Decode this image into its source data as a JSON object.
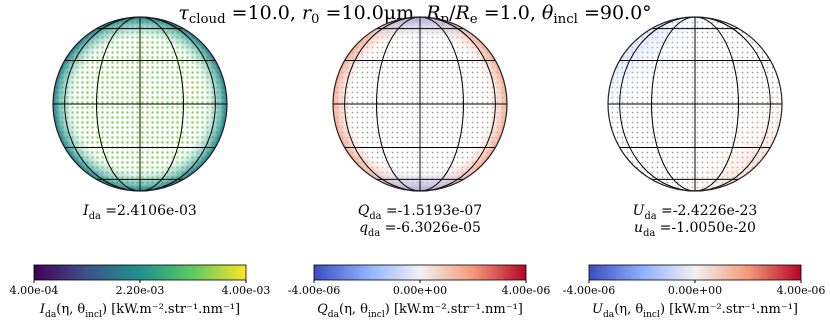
{
  "title": [
    {
      "base": "τ",
      "sub": "cloud",
      "rest": " =10.0, "
    },
    {
      "base": "r",
      "sub": "0",
      "rest": " =10.0μm, "
    },
    {
      "base": "R",
      "sub": "p",
      "rest": "/"
    },
    {
      "base": "R",
      "sub": "e",
      "rest": " =1.0, "
    },
    {
      "base": "θ",
      "sub": "incl",
      "rest": " =90.0°"
    }
  ],
  "panels": [
    {
      "values": [
        [
          {
            "base": "I",
            "sub": "da",
            "rest": " =2.4106e-03"
          }
        ]
      ],
      "colorbar": {
        "colors": [
          "#440154",
          "#3b528b",
          "#21918c",
          "#5ec962",
          "#fde725"
        ],
        "lim": [
          0.0004,
          0.004
        ],
        "ticks": [
          {
            "value": 0.0004,
            "label": "4.00e-04"
          },
          {
            "value": 0.0022,
            "label": "2.20e-03"
          },
          {
            "value": 0.004,
            "label": "4.00e-03"
          }
        ],
        "label": [
          {
            "base": "I",
            "sub": "da",
            "rest": "(η, θ"
          },
          {
            "sub": "incl",
            "rest": ") [kW.m⁻².str⁻¹.nm⁻¹]"
          }
        ]
      }
    },
    {
      "values": [
        [
          {
            "base": "Q",
            "sub": "da",
            "rest": " =-1.5193e-07"
          }
        ],
        [
          {
            "base": "q",
            "sub": "da",
            "rest": " =-6.3026e-05"
          }
        ]
      ],
      "colorbar": {
        "colors": [
          "#3b4cc0",
          "#8db0fe",
          "#f2f2f2",
          "#f49a7b",
          "#b40426"
        ],
        "lim": [
          -4e-06,
          4e-06
        ],
        "ticks": [
          {
            "value": -4e-06,
            "label": "-4.00e-06"
          },
          {
            "value": 0,
            "label": "0.00e+00"
          },
          {
            "value": 4e-06,
            "label": "4.00e-06"
          }
        ],
        "label": [
          {
            "base": "Q",
            "sub": "da",
            "rest": "(η, θ"
          },
          {
            "sub": "incl",
            "rest": ") [kW.m⁻².str⁻¹.nm⁻¹]"
          }
        ]
      }
    },
    {
      "values": [
        [
          {
            "base": "U",
            "sub": "da",
            "rest": " =-2.4226e-23"
          }
        ],
        [
          {
            "base": "u",
            "sub": "da",
            "rest": " =-1.0050e-20"
          }
        ]
      ],
      "colorbar": {
        "colors": [
          "#3b4cc0",
          "#8db0fe",
          "#f2f2f2",
          "#f49a7b",
          "#b40426"
        ],
        "lim": [
          -4e-06,
          4e-06
        ],
        "ticks": [
          {
            "value": -4e-06,
            "label": "-4.00e-06"
          },
          {
            "value": 0,
            "label": "0.00e+00"
          },
          {
            "value": 4e-06,
            "label": "4.00e-06"
          }
        ],
        "label": [
          {
            "base": "U",
            "sub": "da",
            "rest": "(η, θ"
          },
          {
            "sub": "incl",
            "rest": ") [kW.m⁻².str⁻¹.nm⁻¹]"
          }
        ]
      }
    }
  ]
}
